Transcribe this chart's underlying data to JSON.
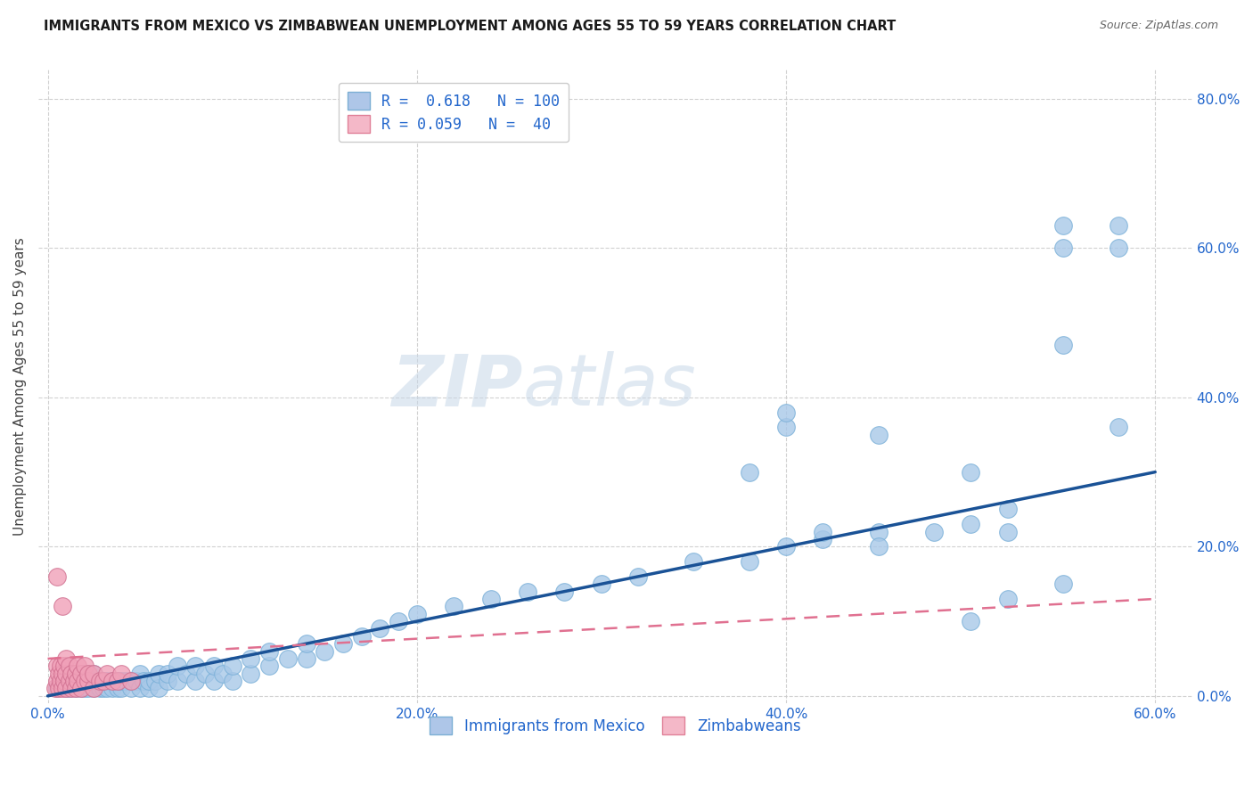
{
  "title": "IMMIGRANTS FROM MEXICO VS ZIMBABWEAN UNEMPLOYMENT AMONG AGES 55 TO 59 YEARS CORRELATION CHART",
  "source": "Source: ZipAtlas.com",
  "ylabel_label": "Unemployment Among Ages 55 to 59 years",
  "blue_scatter_color": "#a8c8e8",
  "pink_scatter_color": "#f0a0b8",
  "blue_line_color": "#1a5296",
  "pink_line_color": "#e07090",
  "blue_scatter_x": [
    0.005,
    0.008,
    0.01,
    0.01,
    0.012,
    0.012,
    0.015,
    0.015,
    0.015,
    0.018,
    0.018,
    0.02,
    0.02,
    0.02,
    0.022,
    0.022,
    0.025,
    0.025,
    0.025,
    0.028,
    0.028,
    0.03,
    0.03,
    0.032,
    0.032,
    0.035,
    0.035,
    0.038,
    0.038,
    0.04,
    0.04,
    0.042,
    0.045,
    0.045,
    0.048,
    0.05,
    0.05,
    0.052,
    0.055,
    0.055,
    0.058,
    0.06,
    0.06,
    0.065,
    0.065,
    0.07,
    0.07,
    0.075,
    0.08,
    0.08,
    0.085,
    0.09,
    0.09,
    0.095,
    0.1,
    0.1,
    0.11,
    0.11,
    0.12,
    0.12,
    0.13,
    0.14,
    0.14,
    0.15,
    0.16,
    0.17,
    0.18,
    0.19,
    0.2,
    0.22,
    0.24,
    0.26,
    0.28,
    0.3,
    0.32,
    0.35,
    0.38,
    0.4,
    0.42,
    0.45,
    0.48,
    0.5,
    0.52,
    0.38,
    0.4,
    0.42,
    0.45,
    0.5,
    0.52,
    0.55,
    0.4,
    0.45,
    0.5,
    0.55,
    0.58,
    0.55,
    0.58,
    0.58,
    0.55,
    0.52
  ],
  "blue_scatter_y": [
    0.01,
    0.02,
    0.01,
    0.02,
    0.01,
    0.02,
    0.01,
    0.02,
    0.03,
    0.01,
    0.02,
    0.01,
    0.02,
    0.03,
    0.01,
    0.02,
    0.01,
    0.02,
    0.03,
    0.01,
    0.02,
    0.01,
    0.02,
    0.01,
    0.02,
    0.01,
    0.02,
    0.01,
    0.02,
    0.01,
    0.02,
    0.02,
    0.01,
    0.02,
    0.02,
    0.01,
    0.03,
    0.02,
    0.01,
    0.02,
    0.02,
    0.01,
    0.03,
    0.02,
    0.03,
    0.02,
    0.04,
    0.03,
    0.02,
    0.04,
    0.03,
    0.02,
    0.04,
    0.03,
    0.02,
    0.04,
    0.03,
    0.05,
    0.04,
    0.06,
    0.05,
    0.05,
    0.07,
    0.06,
    0.07,
    0.08,
    0.09,
    0.1,
    0.11,
    0.12,
    0.13,
    0.14,
    0.14,
    0.15,
    0.16,
    0.18,
    0.18,
    0.2,
    0.21,
    0.22,
    0.22,
    0.23,
    0.25,
    0.3,
    0.36,
    0.22,
    0.2,
    0.1,
    0.13,
    0.15,
    0.38,
    0.35,
    0.3,
    0.47,
    0.36,
    0.63,
    0.63,
    0.6,
    0.6,
    0.22
  ],
  "pink_scatter_x": [
    0.004,
    0.005,
    0.005,
    0.006,
    0.006,
    0.007,
    0.007,
    0.008,
    0.008,
    0.009,
    0.009,
    0.01,
    0.01,
    0.01,
    0.012,
    0.012,
    0.013,
    0.013,
    0.014,
    0.015,
    0.015,
    0.016,
    0.016,
    0.018,
    0.018,
    0.02,
    0.02,
    0.022,
    0.022,
    0.025,
    0.025,
    0.028,
    0.03,
    0.032,
    0.035,
    0.038,
    0.04,
    0.045,
    0.005,
    0.008
  ],
  "pink_scatter_y": [
    0.01,
    0.02,
    0.04,
    0.01,
    0.03,
    0.02,
    0.04,
    0.01,
    0.03,
    0.02,
    0.04,
    0.01,
    0.03,
    0.05,
    0.02,
    0.04,
    0.01,
    0.03,
    0.02,
    0.01,
    0.03,
    0.02,
    0.04,
    0.01,
    0.03,
    0.02,
    0.04,
    0.02,
    0.03,
    0.01,
    0.03,
    0.02,
    0.02,
    0.03,
    0.02,
    0.02,
    0.03,
    0.02,
    0.16,
    0.12
  ],
  "blue_line_x0": 0.0,
  "blue_line_x1": 0.6,
  "blue_line_y0": 0.0,
  "blue_line_y1": 0.3,
  "pink_line_x0": 0.0,
  "pink_line_x1": 0.6,
  "pink_line_y0": 0.05,
  "pink_line_y1": 0.13,
  "xlim": [
    -0.005,
    0.62
  ],
  "ylim": [
    -0.01,
    0.84
  ],
  "xtick_vals": [
    0.0,
    0.2,
    0.4,
    0.6
  ],
  "xtick_labels": [
    "0.0%",
    "20.0%",
    "40.0%",
    "60.0%"
  ],
  "ytick_vals": [
    0.0,
    0.2,
    0.4,
    0.6,
    0.8
  ],
  "ytick_labels": [
    "0.0%",
    "20.0%",
    "40.0%",
    "60.0%",
    "80.0%"
  ],
  "legend_blue_label": "R =  0.618   N = 100",
  "legend_pink_label": "R = 0.059   N =  40",
  "bottom_legend_blue": "Immigrants from Mexico",
  "bottom_legend_pink": "Zimbabweans",
  "watermark": "ZIPatlas",
  "title_fontsize": 10.5,
  "source_fontsize": 9,
  "tick_fontsize": 11,
  "legend_fontsize": 12,
  "ylabel_fontsize": 11
}
